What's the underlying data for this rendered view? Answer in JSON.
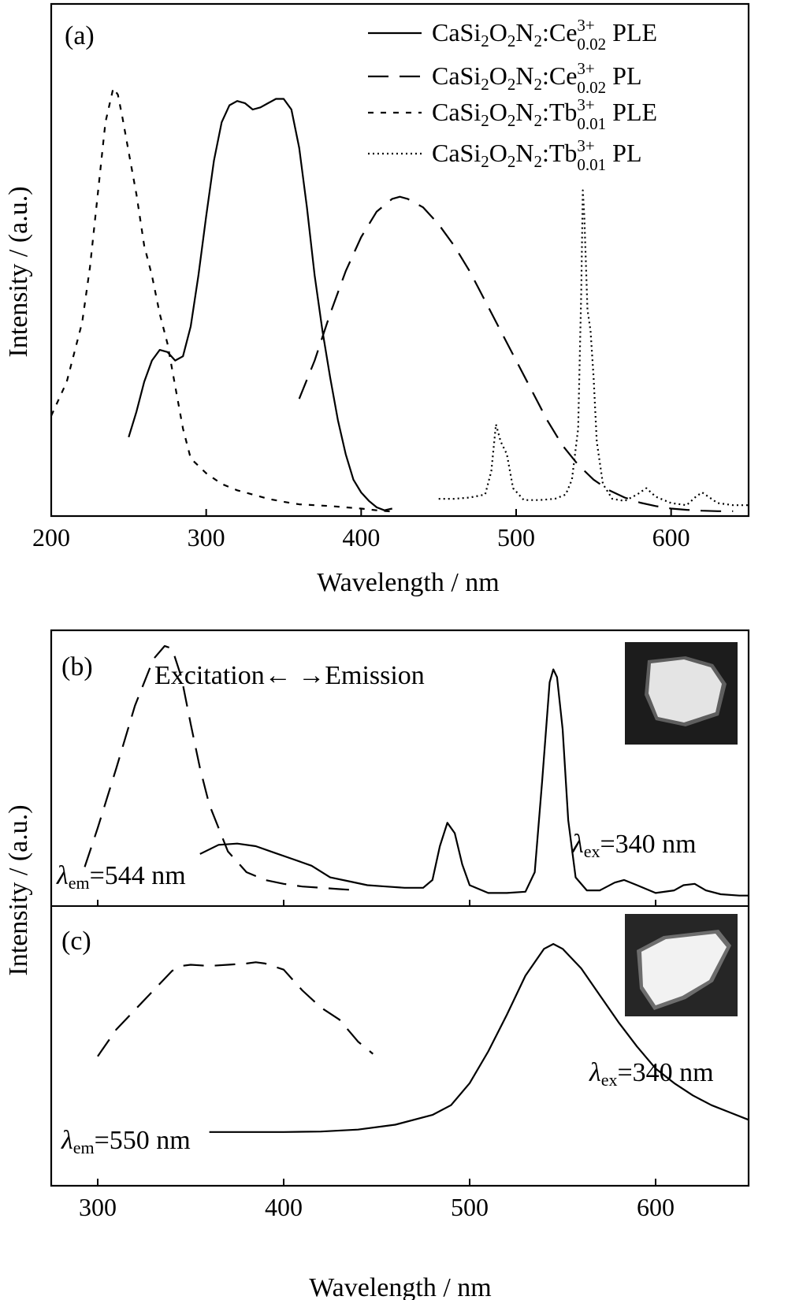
{
  "figure": {
    "colors": {
      "ink": "#000000",
      "background": "#ffffff"
    }
  },
  "chart_data": [
    {
      "panel": "(a)",
      "type": "line",
      "xlabel": "Wavelength / nm",
      "ylabel": "Intensity / (a.u.)",
      "xlim": [
        200,
        650
      ],
      "ylim": [
        0,
        1.0
      ],
      "xticks": [
        200,
        300,
        400,
        500,
        600
      ],
      "legend_position": "top-right",
      "grid": false,
      "series": [
        {
          "name": "CaSi2O2N2:Ce0.02 3+ PLE",
          "label": {
            "base": "CaSi",
            "sub1": "2",
            "mid1": "O",
            "sub2": "2",
            "mid2": "N",
            "sub3": "2",
            "ion": ":Ce",
            "sup": "3+",
            "sub": "0.02",
            "tail": " PLE"
          },
          "style": "solid",
          "x": [
            250,
            255,
            260,
            265,
            270,
            275,
            280,
            285,
            290,
            295,
            300,
            305,
            310,
            315,
            320,
            325,
            330,
            335,
            340,
            345,
            350,
            355,
            360,
            365,
            370,
            375,
            380,
            385,
            390,
            395,
            400,
            405,
            410,
            415,
            420
          ],
          "y": [
            0.18,
            0.24,
            0.31,
            0.36,
            0.385,
            0.38,
            0.36,
            0.37,
            0.44,
            0.56,
            0.7,
            0.83,
            0.92,
            0.96,
            0.97,
            0.965,
            0.95,
            0.955,
            0.965,
            0.975,
            0.975,
            0.95,
            0.86,
            0.72,
            0.56,
            0.43,
            0.32,
            0.22,
            0.14,
            0.08,
            0.05,
            0.03,
            0.015,
            0.008,
            0.012
          ]
        },
        {
          "name": "CaSi2O2N2:Ce0.02 3+ PL",
          "label": {
            "base": "CaSi",
            "sub1": "2",
            "mid1": "O",
            "sub2": "2",
            "mid2": "N",
            "sub3": "2",
            "ion": ":Ce",
            "sup": "3+",
            "sub": "0.02",
            "tail": " PL"
          },
          "style": "dashed",
          "x": [
            360,
            370,
            380,
            390,
            400,
            410,
            420,
            425,
            430,
            440,
            450,
            460,
            470,
            480,
            490,
            500,
            510,
            520,
            530,
            540,
            550,
            560,
            570,
            580,
            590,
            600,
            610,
            620,
            630,
            640
          ],
          "y": [
            0.27,
            0.36,
            0.47,
            0.57,
            0.65,
            0.71,
            0.74,
            0.745,
            0.74,
            0.72,
            0.68,
            0.63,
            0.57,
            0.5,
            0.43,
            0.36,
            0.29,
            0.22,
            0.16,
            0.115,
            0.08,
            0.055,
            0.038,
            0.026,
            0.018,
            0.012,
            0.009,
            0.007,
            0.006,
            0.006
          ]
        },
        {
          "name": "CaSi2O2N2:Tb0.01 3+ PLE",
          "label": {
            "base": "CaSi",
            "sub1": "2",
            "mid1": "O",
            "sub2": "2",
            "mid2": "N",
            "sub3": "2",
            "ion": ":Tb",
            "sup": "3+",
            "sub": "0.01",
            "tail": " PLE"
          },
          "style": "short-dashed",
          "x": [
            200,
            210,
            220,
            225,
            230,
            235,
            240,
            243,
            246,
            250,
            255,
            260,
            265,
            270,
            275,
            280,
            285,
            290,
            300,
            310,
            320,
            330,
            340,
            350,
            360,
            370,
            380,
            390,
            400,
            410,
            420
          ],
          "y": [
            0.23,
            0.31,
            0.45,
            0.58,
            0.75,
            0.92,
            1.0,
            0.985,
            0.93,
            0.85,
            0.75,
            0.63,
            0.56,
            0.47,
            0.4,
            0.3,
            0.2,
            0.13,
            0.095,
            0.07,
            0.055,
            0.045,
            0.035,
            0.028,
            0.022,
            0.02,
            0.018,
            0.015,
            0.012,
            0.008,
            0.005
          ]
        },
        {
          "name": "CaSi2O2N2:Tb0.01 3+ PL",
          "label": {
            "base": "CaSi",
            "sub1": "2",
            "mid1": "O",
            "sub2": "2",
            "mid2": "N",
            "sub3": "2",
            "ion": ":Tb",
            "sup": "3+",
            "sub": "0.01",
            "tail": " PL"
          },
          "style": "dotted",
          "x": [
            450,
            460,
            470,
            480,
            484,
            487,
            490,
            494,
            498,
            505,
            515,
            525,
            532,
            536,
            540,
            542,
            543,
            544,
            546,
            548,
            550,
            552,
            556,
            562,
            570,
            578,
            584,
            590,
            600,
            610,
            616,
            620,
            624,
            630,
            640,
            650
          ],
          "y": [
            0.035,
            0.035,
            0.038,
            0.045,
            0.1,
            0.21,
            0.17,
            0.14,
            0.06,
            0.032,
            0.032,
            0.035,
            0.045,
            0.08,
            0.2,
            0.52,
            0.76,
            0.7,
            0.48,
            0.43,
            0.32,
            0.17,
            0.07,
            0.035,
            0.03,
            0.045,
            0.06,
            0.04,
            0.025,
            0.02,
            0.04,
            0.05,
            0.04,
            0.025,
            0.02,
            0.02
          ]
        }
      ]
    },
    {
      "panel": "(b)",
      "type": "line",
      "xlabel": "",
      "ylabel": "Intensity / (a.u.)",
      "xlim": [
        275,
        650
      ],
      "ylim": [
        0,
        1.0
      ],
      "annotations": {
        "direction": "Excitation← →Emission",
        "em_prefix": "λ",
        "em_sub": "em",
        "em_value": "=544 nm",
        "ex_prefix": "λ",
        "ex_sub": "ex",
        "ex_value": "=340 nm"
      },
      "inset": "photograph of luminescent sample",
      "series": [
        {
          "name": "excitation",
          "style": "dashed",
          "x": [
            293,
            300,
            310,
            320,
            330,
            336,
            340,
            345,
            350,
            355,
            360,
            370,
            380,
            390,
            400,
            410,
            420,
            430,
            440
          ],
          "y": [
            0.12,
            0.27,
            0.5,
            0.74,
            0.92,
            0.97,
            0.96,
            0.85,
            0.67,
            0.5,
            0.36,
            0.18,
            0.1,
            0.07,
            0.055,
            0.045,
            0.04,
            0.035,
            0.03
          ]
        },
        {
          "name": "emission",
          "style": "solid",
          "x": [
            355,
            365,
            375,
            385,
            395,
            405,
            415,
            425,
            435,
            445,
            455,
            465,
            475,
            480,
            484,
            488,
            492,
            496,
            500,
            510,
            520,
            530,
            535,
            539,
            543,
            545,
            547,
            550,
            553,
            557,
            563,
            570,
            578,
            583,
            590,
            600,
            610,
            615,
            621,
            627,
            635,
            645,
            650
          ],
          "y": [
            0.17,
            0.205,
            0.21,
            0.2,
            0.175,
            0.15,
            0.125,
            0.08,
            0.065,
            0.05,
            0.045,
            0.04,
            0.04,
            0.07,
            0.2,
            0.29,
            0.25,
            0.13,
            0.05,
            0.02,
            0.02,
            0.025,
            0.1,
            0.45,
            0.83,
            0.88,
            0.85,
            0.65,
            0.3,
            0.08,
            0.03,
            0.03,
            0.06,
            0.07,
            0.05,
            0.02,
            0.03,
            0.05,
            0.055,
            0.03,
            0.015,
            0.01,
            0.01
          ]
        }
      ]
    },
    {
      "panel": "(c)",
      "type": "line",
      "xlabel": "Wavelength / nm",
      "ylabel": "",
      "xlim": [
        275,
        650
      ],
      "ylim": [
        0,
        1.0
      ],
      "xticks": [
        300,
        400,
        500,
        600
      ],
      "annotations": {
        "em_prefix": "λ",
        "em_sub": "em",
        "em_value": "=550 nm",
        "ex_prefix": "λ",
        "ex_sub": "ex",
        "ex_value": "=340 nm"
      },
      "inset": "photograph of luminescent sample",
      "series": [
        {
          "name": "excitation",
          "style": "dashed",
          "x": [
            300,
            310,
            320,
            330,
            340,
            345,
            350,
            360,
            370,
            380,
            385,
            390,
            400,
            410,
            420,
            430,
            440,
            448
          ],
          "y": [
            0.33,
            0.44,
            0.52,
            0.6,
            0.68,
            0.7,
            0.705,
            0.7,
            0.705,
            0.71,
            0.715,
            0.71,
            0.685,
            0.6,
            0.53,
            0.48,
            0.39,
            0.34
          ]
        },
        {
          "name": "emission",
          "style": "solid",
          "x": [
            360,
            380,
            400,
            420,
            440,
            460,
            480,
            490,
            500,
            510,
            520,
            530,
            540,
            545,
            550,
            560,
            570,
            580,
            590,
            600,
            610,
            620,
            630,
            640,
            650
          ],
          "y": [
            0.02,
            0.02,
            0.02,
            0.022,
            0.03,
            0.05,
            0.09,
            0.13,
            0.22,
            0.35,
            0.5,
            0.66,
            0.77,
            0.79,
            0.77,
            0.69,
            0.58,
            0.47,
            0.37,
            0.28,
            0.22,
            0.17,
            0.13,
            0.1,
            0.07
          ]
        }
      ]
    }
  ]
}
